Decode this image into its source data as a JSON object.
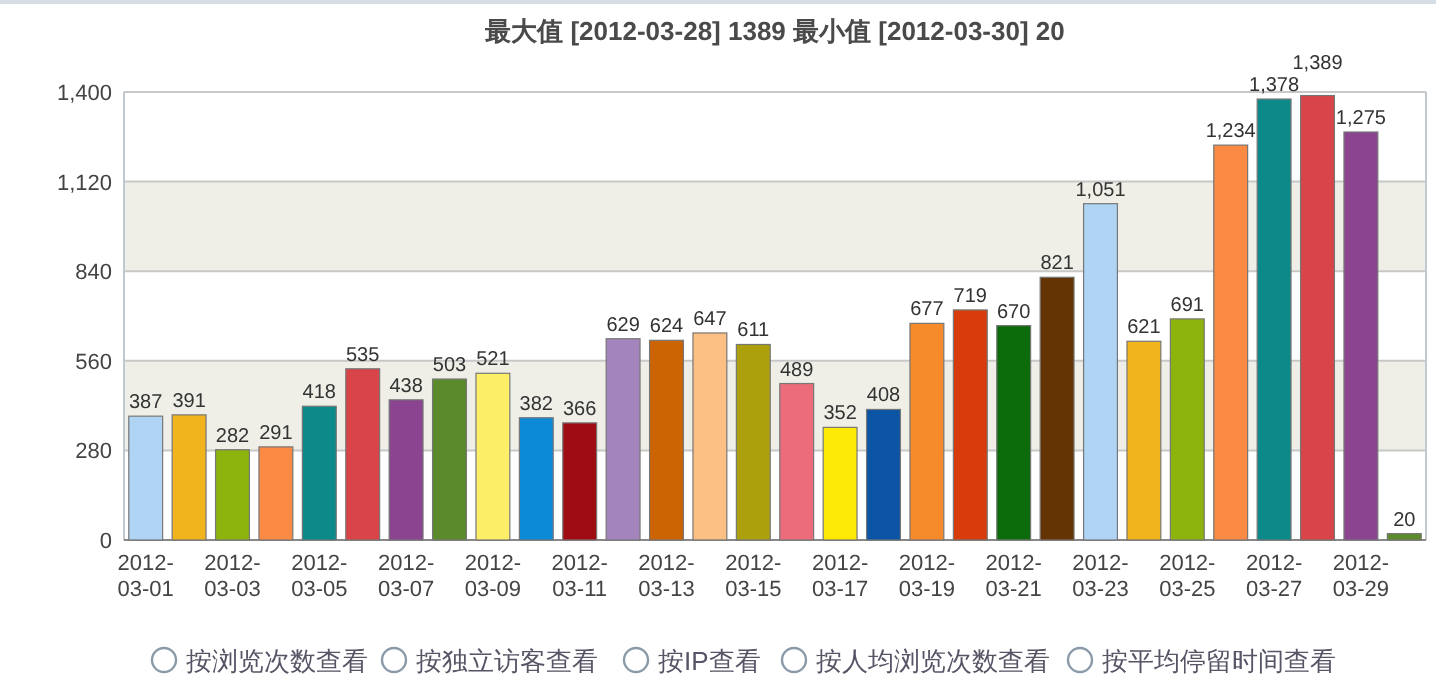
{
  "chart_data": {
    "type": "bar",
    "title": "最大值 [2012-03-28]  1389   最小值 [2012-03-30]  20",
    "categories": [
      "2012-03-01",
      null,
      "2012-03-03",
      null,
      "2012-03-05",
      null,
      "2012-03-07",
      null,
      "2012-03-09",
      null,
      "2012-03-11",
      null,
      "2012-03-13",
      null,
      "2012-03-15",
      null,
      "2012-03-17",
      null,
      "2012-03-19",
      null,
      "2012-03-21",
      null,
      "2012-03-23",
      null,
      "2012-03-25",
      null,
      "2012-03-27",
      null,
      "2012-03-29",
      null
    ],
    "values": [
      387,
      391,
      282,
      291,
      418,
      535,
      438,
      503,
      521,
      382,
      366,
      629,
      624,
      647,
      611,
      489,
      352,
      408,
      677,
      719,
      670,
      821,
      1051,
      621,
      691,
      1234,
      1378,
      1389,
      1275,
      20
    ],
    "value_labels": [
      "387",
      "391",
      "282",
      "291",
      "418",
      "535",
      "438",
      "503",
      "521",
      "382",
      "366",
      "629",
      "624",
      "647",
      "611",
      "489",
      "352",
      "408",
      "677",
      "719",
      "670",
      "821",
      "1,051",
      "621",
      "691",
      "1,234",
      "1,378",
      "1,389",
      "1,275",
      "20"
    ],
    "colors": [
      "#b0d4f4",
      "#f2b41c",
      "#8cb40c",
      "#fb8a44",
      "#0c8a8a",
      "#d84448",
      "#8a4490",
      "#5a8a2c",
      "#fcee66",
      "#0c8ad8",
      "#a00c14",
      "#a484bc",
      "#cc6404",
      "#fcc084",
      "#aca00c",
      "#ec6c7c",
      "#fcea04",
      "#0c54a4",
      "#f68b2c",
      "#d83c0c",
      "#0c6c0c",
      "#643404",
      "#b0d4f4",
      "#f2b41c",
      "#8cb40c",
      "#fb8a44",
      "#0c8a8a",
      "#d84448",
      "#8a4490",
      "#5a8a2c"
    ],
    "ylim": [
      0,
      1400
    ],
    "yticks": [
      0,
      {
        "value": 280,
        "label": "280"
      },
      {
        "value": 560,
        "label": "560"
      },
      {
        "value": 840,
        "label": "840"
      },
      {
        "value": 1120,
        "label": "1,120"
      },
      {
        "value": 1400,
        "label": "1,400"
      }
    ],
    "grid": "y",
    "bands": [
      {
        "axis": "y",
        "from": 280,
        "to": 560,
        "color": "#efefe8"
      },
      {
        "axis": "y",
        "from": 840,
        "to": 1120,
        "color": "#efefe8"
      }
    ],
    "annotations": [
      "按浏览次数查看",
      "按独立访客查看",
      "按IP查看",
      "按人均浏览次数查看",
      "按平均停留时间查看"
    ]
  }
}
